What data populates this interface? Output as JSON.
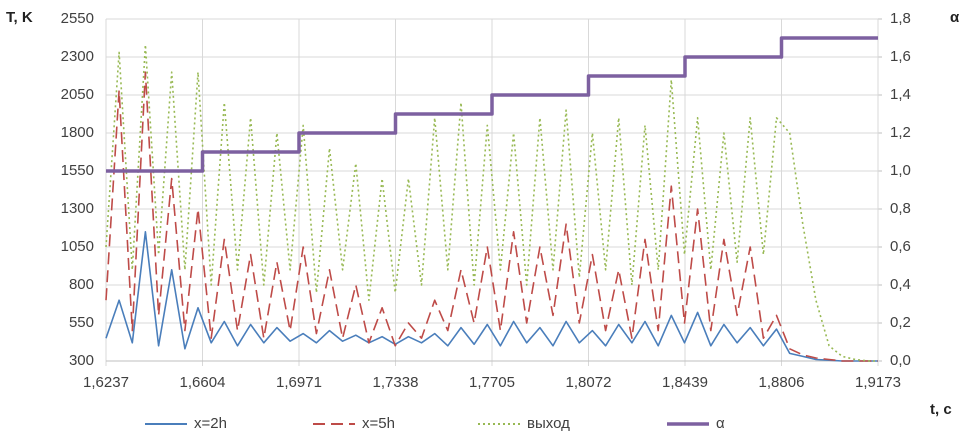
{
  "chart_data": {
    "type": "line",
    "ylabel": "T, K",
    "y2label": "α",
    "xlabel": "t, c",
    "xlim": [
      1.6237,
      1.9173
    ],
    "xticks": [
      {
        "value": 1.6237,
        "label": "1,6237"
      },
      {
        "value": 1.6604,
        "label": "1,6604"
      },
      {
        "value": 1.6971,
        "label": "1,6971"
      },
      {
        "value": 1.7338,
        "label": "1,7338"
      },
      {
        "value": 1.7705,
        "label": "1,7705"
      },
      {
        "value": 1.8072,
        "label": "1,8072"
      },
      {
        "value": 1.8439,
        "label": "1,8439"
      },
      {
        "value": 1.8806,
        "label": "1,8806"
      },
      {
        "value": 1.9173,
        "label": "1,9173"
      }
    ],
    "ylim": [
      300,
      2550
    ],
    "yticks": [
      300,
      550,
      800,
      1050,
      1300,
      1550,
      1800,
      2050,
      2300,
      2550
    ],
    "y2lim": [
      0,
      1.8
    ],
    "y2ticks": [
      {
        "value": 0,
        "label": "0,0"
      },
      {
        "value": 0.2,
        "label": "0,2"
      },
      {
        "value": 0.4,
        "label": "0,4"
      },
      {
        "value": 0.6,
        "label": "0,6"
      },
      {
        "value": 0.8,
        "label": "0,8"
      },
      {
        "value": 1.0,
        "label": "1,0"
      },
      {
        "value": 1.2,
        "label": "1,2"
      },
      {
        "value": 1.4,
        "label": "1,4"
      },
      {
        "value": 1.6,
        "label": "1,6"
      },
      {
        "value": 1.8,
        "label": "1,8"
      }
    ],
    "grid": true,
    "x": [
      1.6237,
      1.6287,
      1.6337,
      1.6387,
      1.6437,
      1.6487,
      1.6537,
      1.6587,
      1.6637,
      1.6687,
      1.6737,
      1.6787,
      1.6837,
      1.6887,
      1.6937,
      1.6987,
      1.7037,
      1.7087,
      1.7137,
      1.7187,
      1.7237,
      1.7287,
      1.7337,
      1.7387,
      1.7437,
      1.7487,
      1.7537,
      1.7587,
      1.7637,
      1.7687,
      1.7737,
      1.7787,
      1.7837,
      1.7887,
      1.7937,
      1.7987,
      1.8037,
      1.8087,
      1.8137,
      1.8187,
      1.8237,
      1.8287,
      1.8337,
      1.8387,
      1.8437,
      1.8487,
      1.8537,
      1.8587,
      1.8637,
      1.8687,
      1.8737,
      1.8787,
      1.8837,
      1.8887,
      1.8937,
      1.8987,
      1.9037,
      1.9087,
      1.9137,
      1.9173
    ],
    "series": [
      {
        "name": "x=2h",
        "color": "#4a7ebb",
        "dash": "none",
        "values": [
          450,
          700,
          420,
          1150,
          400,
          900,
          380,
          650,
          420,
          560,
          400,
          540,
          420,
          520,
          430,
          480,
          420,
          500,
          430,
          470,
          420,
          460,
          410,
          460,
          420,
          480,
          400,
          520,
          410,
          540,
          400,
          560,
          420,
          520,
          400,
          560,
          420,
          500,
          400,
          540,
          420,
          560,
          400,
          600,
          420,
          620,
          400,
          540,
          420,
          520,
          400,
          510,
          350,
          330,
          310,
          305,
          300,
          300,
          300,
          300
        ]
      },
      {
        "name": "x=5h",
        "color": "#be4b48",
        "dash": "12,6",
        "values": [
          700,
          2080,
          500,
          2200,
          600,
          1500,
          500,
          1300,
          450,
          1100,
          500,
          1000,
          450,
          950,
          500,
          1050,
          480,
          900,
          450,
          800,
          420,
          650,
          400,
          550,
          450,
          700,
          500,
          900,
          550,
          1050,
          500,
          1150,
          550,
          1050,
          600,
          1200,
          550,
          1000,
          500,
          900,
          450,
          1100,
          500,
          1450,
          550,
          1300,
          500,
          1100,
          600,
          1050,
          450,
          600,
          380,
          340,
          320,
          310,
          300,
          300,
          300,
          300
        ]
      },
      {
        "name": "выход",
        "color": "#98b954",
        "dash": "2,3",
        "values": [
          1050,
          2330,
          900,
          2380,
          1000,
          2200,
          900,
          2200,
          800,
          2000,
          900,
          1900,
          800,
          1800,
          900,
          1850,
          750,
          1700,
          900,
          1600,
          700,
          1500,
          750,
          1500,
          800,
          1900,
          900,
          2000,
          800,
          1850,
          900,
          1800,
          800,
          1900,
          900,
          1950,
          850,
          1800,
          900,
          1900,
          800,
          1850,
          900,
          2150,
          1000,
          1900,
          900,
          1800,
          950,
          1900,
          1000,
          1900,
          1800,
          1200,
          700,
          400,
          330,
          310,
          300,
          300
        ]
      },
      {
        "name": "α",
        "color": "#7d60a0",
        "dash": "none",
        "axis": "y2",
        "x": [
          1.6237,
          1.6604,
          1.6604,
          1.6971,
          1.6971,
          1.7338,
          1.7338,
          1.7705,
          1.7705,
          1.8072,
          1.8072,
          1.8439,
          1.8439,
          1.8806,
          1.8806,
          1.9173
        ],
        "values": [
          1.0,
          1.0,
          1.1,
          1.1,
          1.2,
          1.2,
          1.3,
          1.3,
          1.4,
          1.4,
          1.5,
          1.5,
          1.6,
          1.6,
          1.7,
          1.7
        ]
      }
    ]
  }
}
